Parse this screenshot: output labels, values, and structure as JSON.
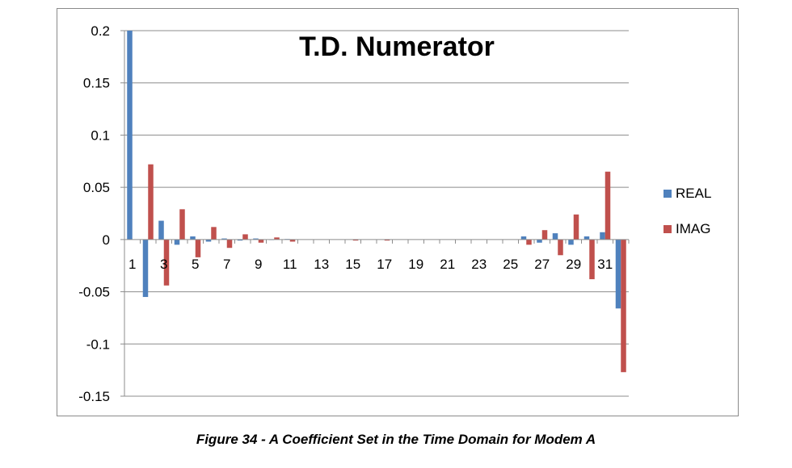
{
  "caption": "Figure 34 - A Coefficient Set in the Time Domain for Modem A",
  "chart_data": {
    "type": "bar",
    "title": "T.D. Numerator",
    "xlabel": "",
    "ylabel": "",
    "ylim": [
      -0.15,
      0.2
    ],
    "yticks": [
      0.2,
      0.15,
      0.1,
      0.05,
      0,
      -0.05,
      -0.1,
      -0.15
    ],
    "ytick_labels": [
      "0.2",
      "0.15",
      "0.1",
      "0.05",
      "0",
      "-0.05",
      "-0.1",
      "-0.15"
    ],
    "categories": [
      1,
      2,
      3,
      4,
      5,
      6,
      7,
      8,
      9,
      10,
      11,
      12,
      13,
      14,
      15,
      16,
      17,
      18,
      19,
      20,
      21,
      22,
      23,
      24,
      25,
      26,
      27,
      28,
      29,
      30,
      31,
      32
    ],
    "xtick_labels": [
      "1",
      "",
      "3",
      "",
      "5",
      "",
      "7",
      "",
      "9",
      "",
      "11",
      "",
      "13",
      "",
      "15",
      "",
      "17",
      "",
      "19",
      "",
      "21",
      "",
      "23",
      "",
      "25",
      "",
      "27",
      "",
      "29",
      "",
      "31",
      ""
    ],
    "grid": true,
    "legend_position": "right",
    "series": [
      {
        "name": "REAL",
        "color": "#4f81bd",
        "values": [
          0.2,
          -0.055,
          0.018,
          -0.005,
          0.003,
          -0.002,
          0.001,
          -0.001,
          0.001,
          -0.0005,
          0.0005,
          0,
          0,
          0,
          0,
          0,
          0,
          0,
          0,
          0,
          0,
          0,
          0,
          0,
          0,
          0.003,
          -0.003,
          0.006,
          -0.005,
          0.003,
          0.007,
          -0.066
        ]
      },
      {
        "name": "IMAG",
        "color": "#c0504d",
        "values": [
          0,
          0.072,
          -0.044,
          0.029,
          -0.017,
          0.012,
          -0.008,
          0.005,
          -0.003,
          0.002,
          -0.002,
          0,
          0,
          0,
          -0.001,
          0,
          -0.001,
          0,
          0,
          0,
          0,
          0,
          0,
          0,
          0,
          -0.005,
          0.009,
          -0.015,
          0.024,
          -0.038,
          0.065,
          -0.127
        ]
      }
    ]
  }
}
